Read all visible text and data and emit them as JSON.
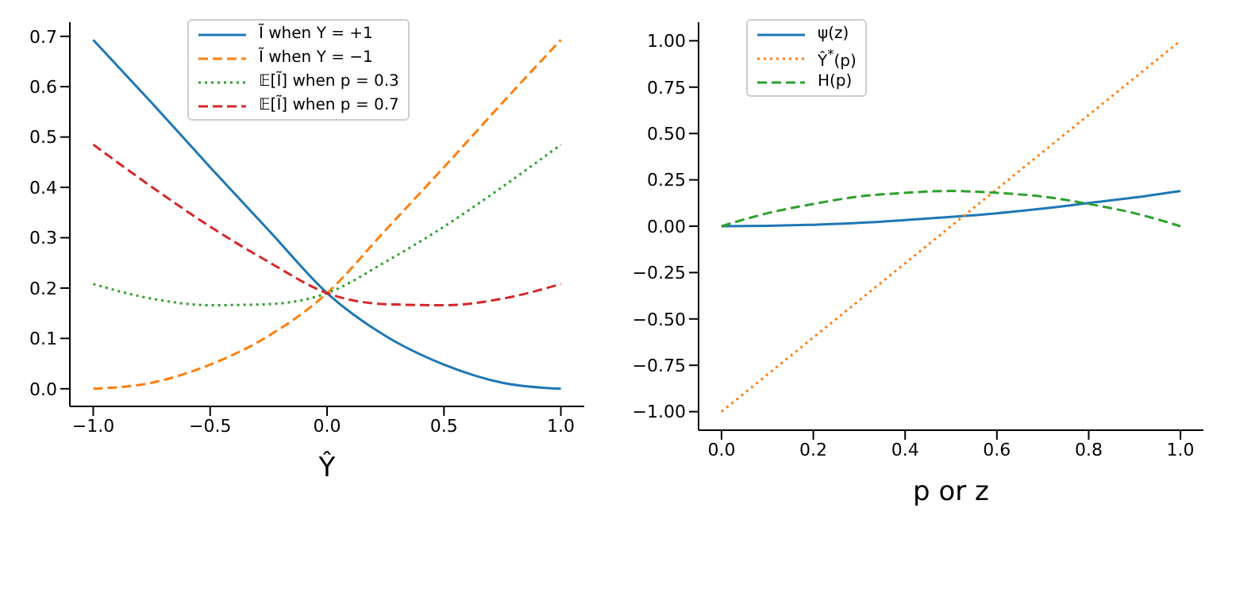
{
  "chart_data": [
    {
      "type": "line",
      "xlabel": "Ŷ",
      "xlim": [
        -1.1,
        1.1
      ],
      "ylim": [
        -0.035,
        0.728
      ],
      "xticks": [
        {
          "value": -1,
          "label": "−1.0"
        },
        {
          "value": -0.5,
          "label": "−0.5"
        },
        {
          "value": 0,
          "label": "0.0"
        },
        {
          "value": 0.5,
          "label": "0.5"
        },
        {
          "value": 1,
          "label": "1.0"
        }
      ],
      "yticks": [
        {
          "value": 0,
          "label": "0.0"
        },
        {
          "value": 0.1,
          "label": "0.1"
        },
        {
          "value": 0.2,
          "label": "0.2"
        },
        {
          "value": 0.3,
          "label": "0.3"
        },
        {
          "value": 0.4,
          "label": "0.4"
        },
        {
          "value": 0.5,
          "label": "0.5"
        },
        {
          "value": 0.6,
          "label": "0.6"
        },
        {
          "value": 0.7,
          "label": "0.7"
        }
      ],
      "x": [
        -1,
        -0.75,
        -0.5,
        -0.25,
        0,
        0.25,
        0.5,
        0.75,
        1
      ],
      "legend": "top",
      "grid": false,
      "series": [
        {
          "name": "Ĩ when Y = +1",
          "color": "#1f77b4",
          "line_style": "solid",
          "values": [
            0.693,
            0.568,
            0.44,
            0.315,
            0.19,
            0.105,
            0.048,
            0.012,
            0.0
          ]
        },
        {
          "name": "Ĩ when Y = −1",
          "color": "#ff7f0e",
          "line_style": "dashed",
          "values": [
            0.0,
            0.012,
            0.048,
            0.105,
            0.19,
            0.315,
            0.44,
            0.568,
            0.693
          ]
        },
        {
          "name": "𝔼[Ĩ] when p = 0.3",
          "color": "#2ca02c",
          "line_style": "dotted",
          "values": [
            0.208,
            0.179,
            0.166,
            0.168,
            0.19,
            0.252,
            0.322,
            0.401,
            0.485
          ]
        },
        {
          "name": "𝔼[Ĩ] when p = 0.7",
          "color": "#d62728",
          "line_style": "dashed",
          "values": [
            0.485,
            0.401,
            0.322,
            0.252,
            0.19,
            0.168,
            0.166,
            0.179,
            0.208
          ]
        }
      ]
    },
    {
      "type": "line",
      "xlabel": "p or z",
      "xlim": [
        -0.05,
        1.05
      ],
      "ylim": [
        -1.1,
        1.1
      ],
      "xticks": [
        {
          "value": 0,
          "label": "0.0"
        },
        {
          "value": 0.2,
          "label": "0.2"
        },
        {
          "value": 0.4,
          "label": "0.4"
        },
        {
          "value": 0.6,
          "label": "0.6"
        },
        {
          "value": 0.8,
          "label": "0.8"
        },
        {
          "value": 1,
          "label": "1.0"
        }
      ],
      "yticks": [
        {
          "value": -1,
          "label": "−1.00"
        },
        {
          "value": -0.75,
          "label": "−0.75"
        },
        {
          "value": -0.5,
          "label": "−0.50"
        },
        {
          "value": -0.25,
          "label": "−0.25"
        },
        {
          "value": 0,
          "label": "0.00"
        },
        {
          "value": 0.25,
          "label": "0.25"
        },
        {
          "value": 0.5,
          "label": "0.50"
        },
        {
          "value": 0.75,
          "label": "0.75"
        },
        {
          "value": 1,
          "label": "1.00"
        }
      ],
      "legend": "top left",
      "grid": false,
      "series": [
        {
          "name": "ψ(z)",
          "color": "#1f77b4",
          "line_style": "solid",
          "x": [
            0,
            0.1,
            0.2,
            0.3,
            0.4,
            0.5,
            0.6,
            0.7,
            0.8,
            0.9,
            1
          ],
          "values": [
            0,
            0.002,
            0.008,
            0.018,
            0.033,
            0.05,
            0.07,
            0.095,
            0.125,
            0.155,
            0.19
          ]
        },
        {
          "name": "Ŷ$^{*}$(p)",
          "color": "#ff7f0e",
          "line_style": "dotted",
          "x": [
            0,
            1
          ],
          "values": [
            -1,
            1
          ]
        },
        {
          "name": "H(p)",
          "color": "#2ca02c",
          "line_style": "dashed",
          "x": [
            0,
            0.1,
            0.2,
            0.3,
            0.4,
            0.5,
            0.6,
            0.7,
            0.8,
            0.9,
            1
          ],
          "values": [
            0,
            0.07,
            0.12,
            0.16,
            0.18,
            0.19,
            0.18,
            0.16,
            0.12,
            0.07,
            0
          ]
        }
      ]
    }
  ]
}
